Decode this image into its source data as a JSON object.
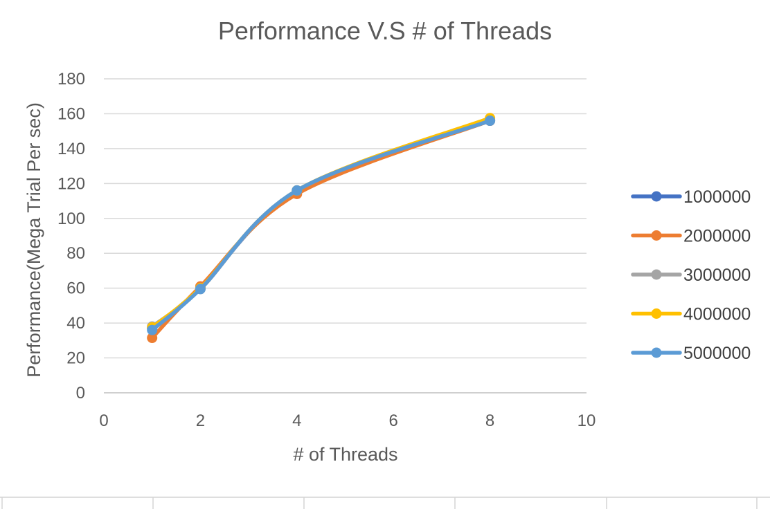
{
  "chart_data": {
    "type": "line",
    "title": "Performance V.S # of Threads",
    "xlabel": "# of Threads",
    "ylabel": "Performance(Mega Trial Per sec)",
    "xlim": [
      0,
      10
    ],
    "ylim": [
      0,
      180
    ],
    "x_ticks": [
      "0",
      "2",
      "4",
      "6",
      "8",
      "10"
    ],
    "y_ticks": [
      "0",
      "20",
      "40",
      "60",
      "80",
      "100",
      "120",
      "140",
      "160",
      "180"
    ],
    "grid": "horizontal",
    "smoothed": true,
    "legend_position": "right",
    "x": [
      1,
      2,
      4,
      8
    ],
    "series": [
      {
        "name": "1000000",
        "color": "#4472C4",
        "values": [
          37,
          60,
          115,
          156
        ]
      },
      {
        "name": "2000000",
        "color": "#ED7D31",
        "values": [
          31.5,
          61,
          114,
          156
        ]
      },
      {
        "name": "3000000",
        "color": "#A5A5A5",
        "values": [
          38,
          59.5,
          116,
          156.5
        ]
      },
      {
        "name": "4000000",
        "color": "#FFC000",
        "values": [
          37.5,
          60,
          116,
          157.5
        ]
      },
      {
        "name": "5000000",
        "color": "#5B9BD5",
        "values": [
          36,
          59.5,
          116,
          156
        ]
      }
    ]
  }
}
